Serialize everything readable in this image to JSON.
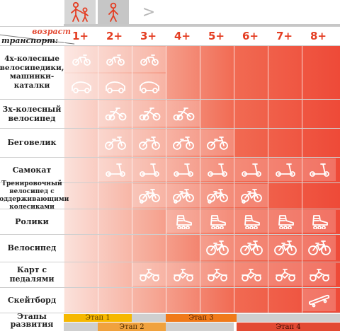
{
  "header": {
    "age_caption": "возраст",
    "transport_caption": "транспорт:",
    "next_arrow": ">",
    "tab_icons": [
      "family-icon",
      "child-icon"
    ]
  },
  "ages": [
    "1+",
    "2+",
    "3+",
    "4+",
    "5+",
    "6+",
    "7+",
    "8+"
  ],
  "rows": [
    {
      "label": "4х-колесные велосипедики, машинки-каталки",
      "icon": "small-bike-and-car-icon",
      "cols": [
        0,
        1,
        2
      ],
      "font": 10.5
    },
    {
      "label": "3х-колесный велосипед",
      "icon": "tricycle-icon",
      "cols": [
        1,
        2,
        3
      ],
      "font": 11
    },
    {
      "label": "Беговелик",
      "icon": "balance-bike-icon",
      "cols": [
        1,
        2,
        3,
        4
      ],
      "font": 11
    },
    {
      "label": "Самокат",
      "icon": "scooter-icon",
      "cols": [
        1,
        2,
        3,
        4,
        5,
        6,
        7
      ],
      "font": 11
    },
    {
      "label": "Тренировочный велосипед с поддерживающими колесиками",
      "icon": "training-bike-icon",
      "cols": [
        2,
        3,
        4,
        5
      ],
      "font": 9
    },
    {
      "label": "Ролики",
      "icon": "roller-skate-icon",
      "cols": [
        3,
        4,
        5,
        6,
        7
      ],
      "font": 11
    },
    {
      "label": "Велосипед",
      "icon": "bicycle-icon",
      "cols": [
        4,
        5,
        6,
        7
      ],
      "font": 11
    },
    {
      "label": "Карт с педалями",
      "icon": "pedal-kart-icon",
      "cols": [
        2,
        3,
        4,
        5,
        6,
        7
      ],
      "font": 11
    },
    {
      "label": "Скейтборд",
      "icon": "skateboard-icon",
      "cols": [
        7
      ],
      "font": 11
    }
  ],
  "stages": {
    "caption": "Этапы развития",
    "items": [
      "Этап 1",
      "Этап 2",
      "Этап 3",
      "Этап 4"
    ],
    "colors": {
      "s1": "#f6b800",
      "s2": "#f0a23e",
      "s3": "#f07a1a",
      "s4": "#e34a33",
      "gray": "#c9c9c9"
    }
  },
  "colors": {
    "accent": "#e43d22"
  }
}
